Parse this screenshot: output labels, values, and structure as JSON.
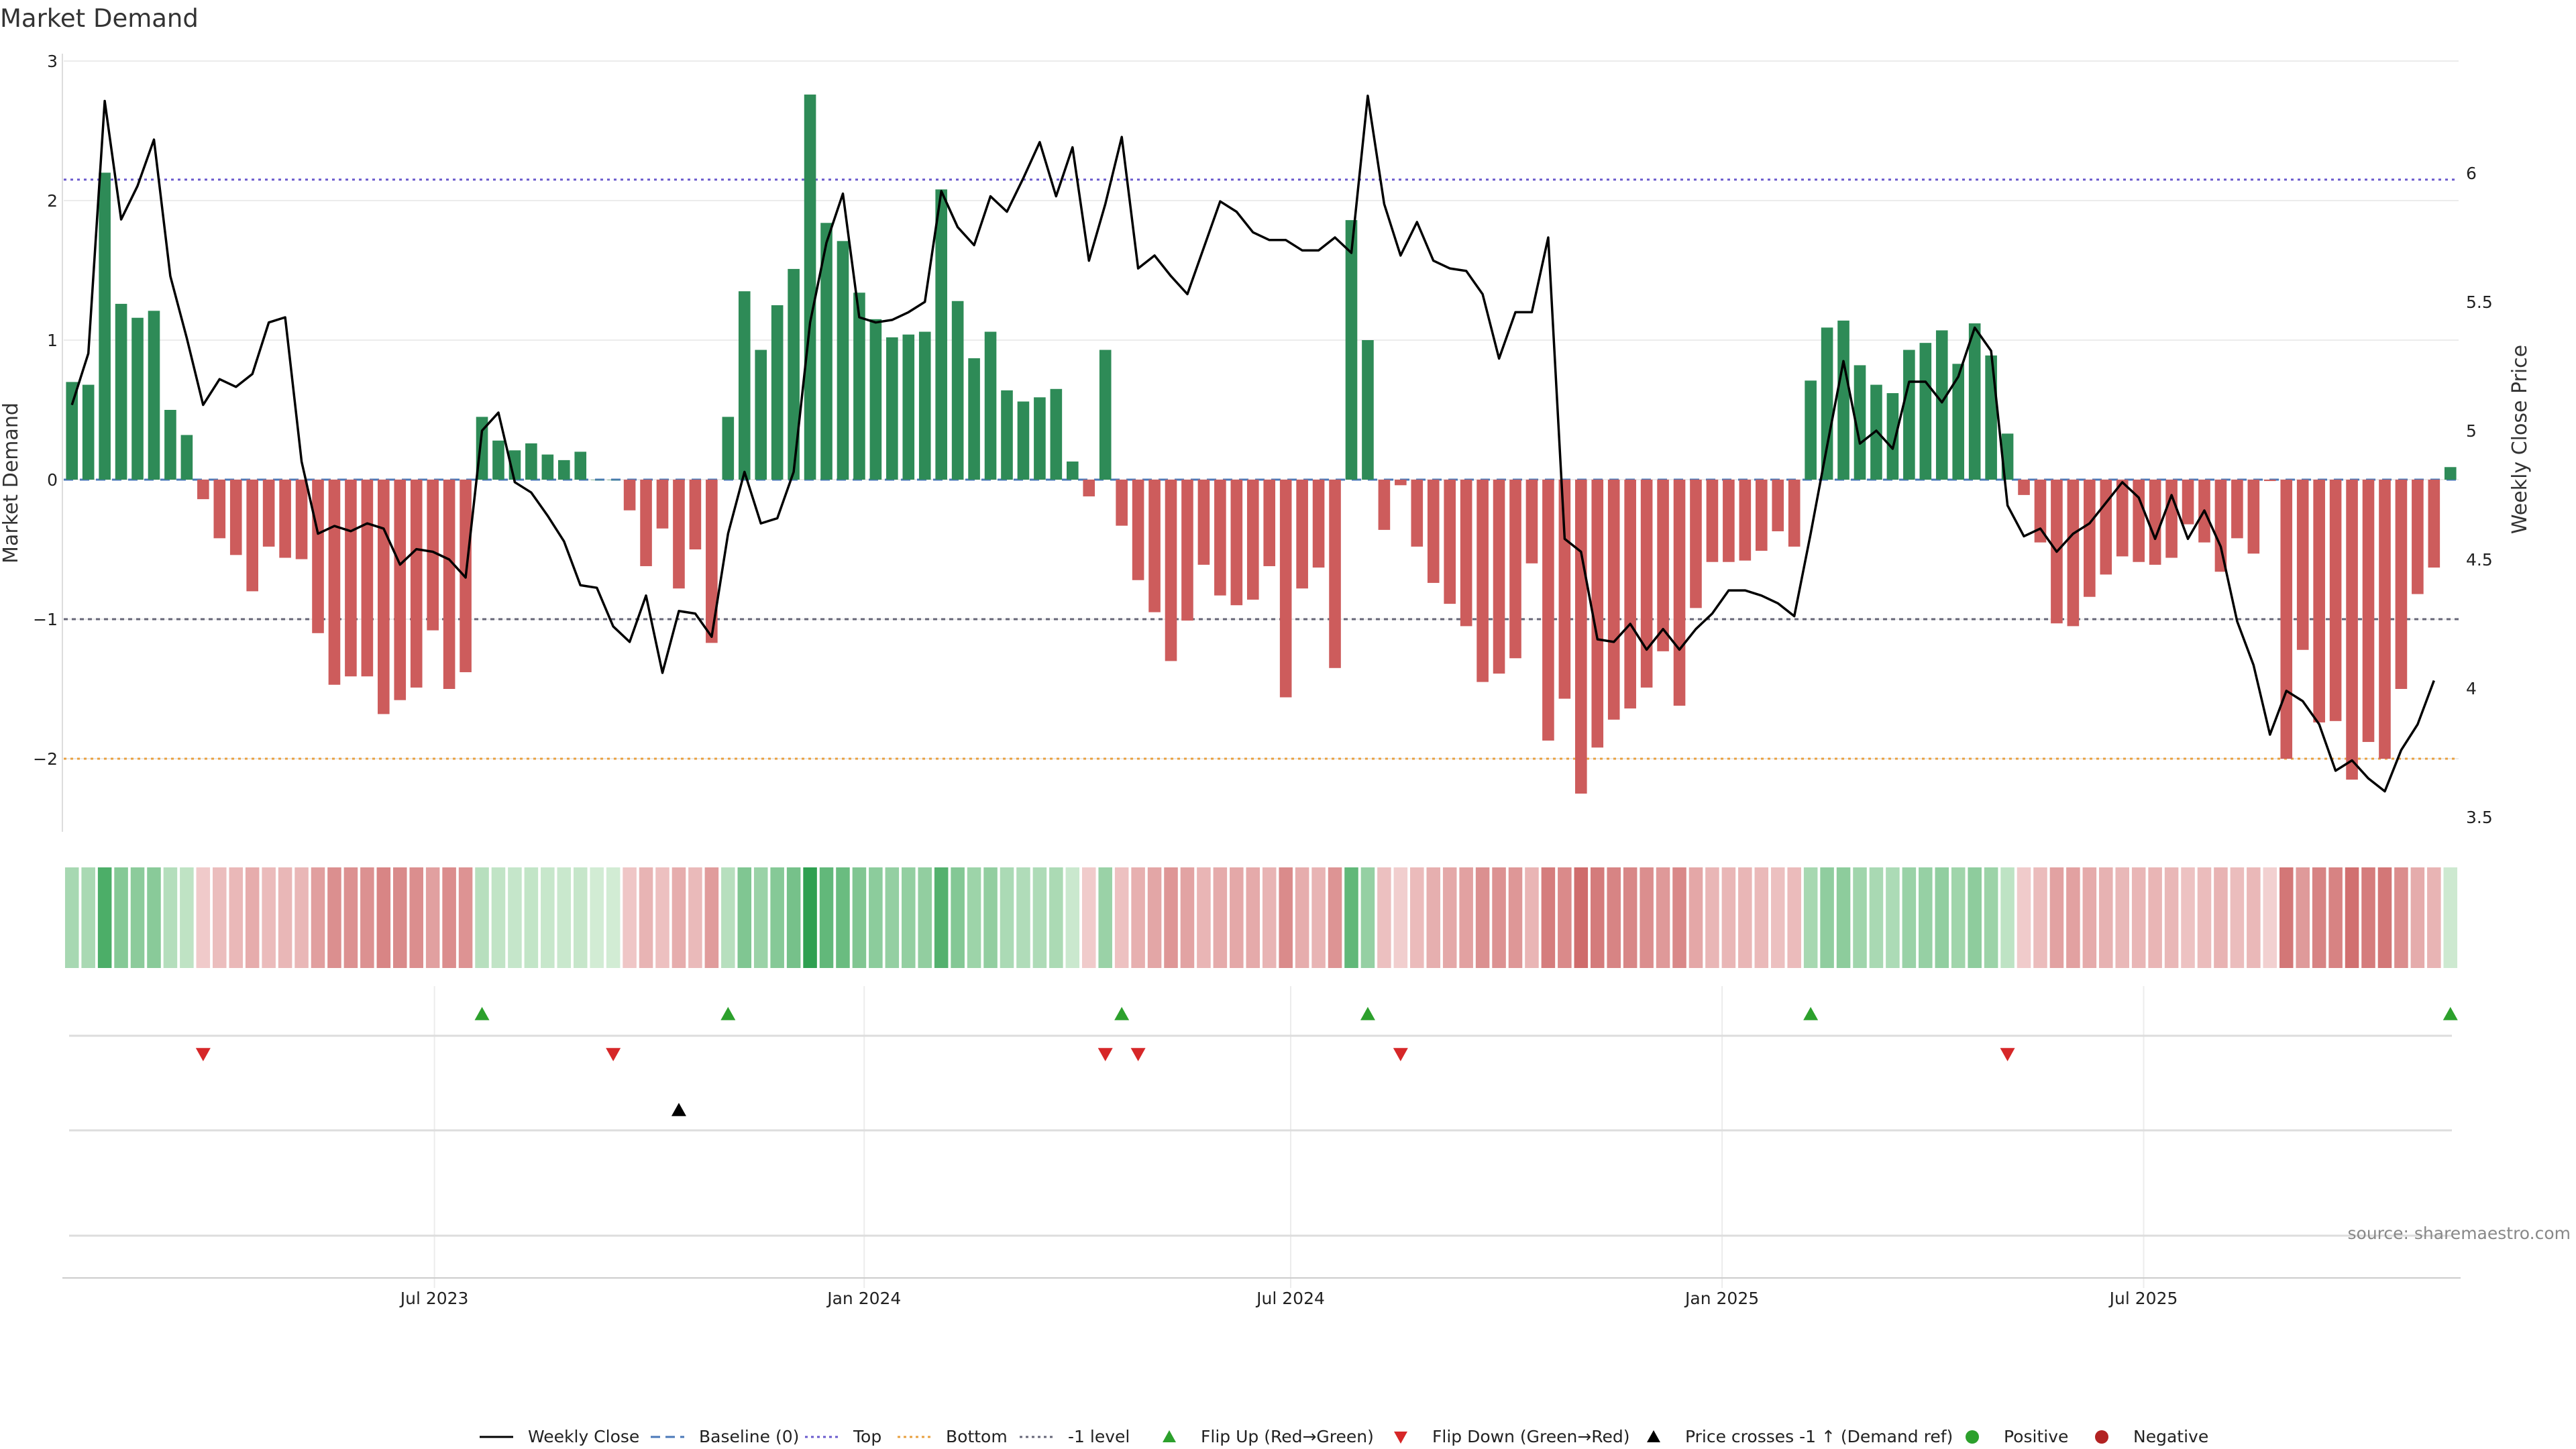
{
  "chart_data": {
    "type": "bar",
    "title": "Market Demand",
    "ylabel": "Market Demand",
    "y2label": "Weekly Close Price",
    "ylim": [
      -2.5,
      3.0
    ],
    "y2lim": [
      3.45,
      6.45
    ],
    "yticks": [
      3,
      2,
      1,
      0,
      -1,
      -2
    ],
    "ytick_labels": [
      "3",
      "2",
      "1",
      "0",
      "−1",
      "−2"
    ],
    "y2ticks": [
      6,
      5.5,
      5,
      4.5,
      4,
      3.5
    ],
    "y2tick_labels": [
      "6",
      "5.5",
      "5",
      "4.5",
      "4",
      "3.5"
    ],
    "xticks": [
      22.1,
      48.3,
      74.3,
      100.6,
      126.3
    ],
    "xtick_labels": [
      "Jul 2023",
      "Jan 2024",
      "Jul 2024",
      "Jan 2025",
      "Jul 2025"
    ],
    "reference_lines": {
      "top": 2.15,
      "bottom": -2.0,
      "minus_one": -1.0,
      "baseline": 0
    },
    "colors": {
      "positive": "#2e8b57",
      "negative": "#cd5c5c",
      "price": "#000000",
      "top": "#6a5acd",
      "bottom": "#e8a040",
      "minus_one": "#666677",
      "flip_up": "#2ca02c",
      "flip_down": "#d62728",
      "cross": "#000000"
    },
    "demand": [
      0.7,
      0.68,
      2.2,
      1.26,
      1.16,
      1.21,
      0.5,
      0.32,
      -0.14,
      -0.42,
      -0.54,
      -0.8,
      -0.48,
      -0.56,
      -0.57,
      -1.1,
      -1.47,
      -1.41,
      -1.41,
      -1.68,
      -1.58,
      -1.49,
      -1.08,
      -1.5,
      -1.38,
      0.45,
      0.28,
      0.21,
      0.26,
      0.18,
      0.14,
      0.2,
      0.0,
      0.0,
      -0.22,
      -0.62,
      -0.35,
      -0.78,
      -0.5,
      -1.17,
      0.45,
      1.35,
      0.93,
      1.25,
      1.51,
      2.76,
      1.84,
      1.71,
      1.34,
      1.15,
      1.02,
      1.04,
      1.06,
      2.08,
      1.28,
      0.87,
      1.06,
      0.64,
      0.56,
      0.59,
      0.65,
      0.13,
      -0.12,
      0.93,
      -0.33,
      -0.72,
      -0.95,
      -1.3,
      -1.01,
      -0.61,
      -0.83,
      -0.9,
      -0.86,
      -0.62,
      -1.56,
      -0.78,
      -0.63,
      -1.35,
      1.86,
      1.0,
      -0.36,
      -0.04,
      -0.48,
      -0.74,
      -0.89,
      -1.05,
      -1.45,
      -1.39,
      -1.28,
      -0.6,
      -1.87,
      -1.57,
      -2.25,
      -1.92,
      -1.72,
      -1.64,
      -1.49,
      -1.23,
      -1.62,
      -0.92,
      -0.59,
      -0.59,
      -0.58,
      -0.51,
      -0.37,
      -0.48,
      0.71,
      1.09,
      1.14,
      0.82,
      0.68,
      0.62,
      0.93,
      0.98,
      1.07,
      0.83,
      1.12,
      0.89,
      0.33,
      -0.11,
      -0.45,
      -1.03,
      -1.05,
      -0.84,
      -0.68,
      -0.55,
      -0.59,
      -0.61,
      -0.56,
      -0.32,
      -0.45,
      -0.66,
      -0.42,
      -0.53,
      -0.01,
      -2.0,
      -1.22,
      -1.74,
      -1.73,
      -2.15,
      -1.88,
      -2.0,
      -1.5,
      -0.82,
      -0.63,
      0.09
    ],
    "price": [
      5.1,
      5.3,
      6.28,
      5.82,
      5.95,
      6.13,
      5.6,
      5.36,
      5.1,
      5.2,
      5.17,
      5.22,
      5.42,
      5.44,
      4.88,
      4.6,
      4.63,
      4.61,
      4.64,
      4.62,
      4.48,
      4.54,
      4.53,
      4.5,
      4.43,
      5.0,
      5.07,
      4.8,
      4.76,
      4.67,
      4.57,
      4.4,
      4.39,
      4.24,
      4.18,
      4.36,
      4.06,
      4.3,
      4.29,
      4.2,
      4.6,
      4.84,
      4.64,
      4.66,
      4.84,
      5.42,
      5.73,
      5.92,
      5.44,
      5.42,
      5.43,
      5.46,
      5.5,
      5.93,
      5.79,
      5.72,
      5.91,
      5.85,
      5.98,
      6.12,
      5.91,
      6.1,
      5.66,
      5.88,
      6.14,
      5.63,
      5.68,
      5.6,
      5.53,
      5.71,
      5.89,
      5.85,
      5.77,
      5.74,
      5.74,
      5.7,
      5.7,
      5.75,
      5.69,
      6.3,
      5.88,
      5.68,
      5.81,
      5.66,
      5.63,
      5.62,
      5.53,
      5.28,
      5.46,
      5.46,
      5.75,
      4.58,
      4.53,
      4.19,
      4.18,
      4.25,
      4.15,
      4.23,
      4.15,
      4.23,
      4.29,
      4.38,
      4.38,
      4.36,
      4.33,
      4.28,
      4.6,
      4.94,
      5.27,
      4.95,
      5.0,
      4.93,
      5.19,
      5.19,
      5.11,
      5.21,
      5.4,
      5.31,
      4.71,
      4.59,
      4.62,
      4.53,
      4.6,
      4.64,
      4.72,
      4.8,
      4.74,
      4.58,
      4.75,
      4.58,
      4.69,
      4.55,
      4.26,
      4.09,
      3.82,
      3.99,
      3.95,
      3.86,
      3.68,
      3.72,
      3.65,
      3.6,
      3.76,
      3.86,
      4.03
    ],
    "heatmap_strip": "weekly demand intensity",
    "flip_up_indices": [
      25,
      40,
      64,
      79,
      106,
      145
    ],
    "flip_down_indices": [
      8,
      33,
      63,
      65,
      81,
      118
    ],
    "price_cross_indices": [
      37
    ],
    "source": "source: sharemaestro.com",
    "legend": [
      {
        "label": "Weekly Close",
        "kind": "line-solid",
        "color": "#000000"
      },
      {
        "label": "Baseline (0)",
        "kind": "line-dash",
        "color": "#4a78b8"
      },
      {
        "label": "Top",
        "kind": "line-dot",
        "color": "#6a5acd"
      },
      {
        "label": "Bottom",
        "kind": "line-dot",
        "color": "#e8a040"
      },
      {
        "label": "-1 level",
        "kind": "line-dot",
        "color": "#666677"
      },
      {
        "label": "Flip Up (Red→Green)",
        "kind": "tri-up",
        "color": "#2ca02c"
      },
      {
        "label": "Flip Down (Green→Red)",
        "kind": "tri-down",
        "color": "#d62728"
      },
      {
        "label": "Price crosses -1 ↑ (Demand ref)",
        "kind": "tri-up",
        "color": "#000000"
      },
      {
        "label": "Positive",
        "kind": "dot",
        "color": "#2ca02c"
      },
      {
        "label": "Negative",
        "kind": "dot",
        "color": "#b22222"
      }
    ]
  }
}
